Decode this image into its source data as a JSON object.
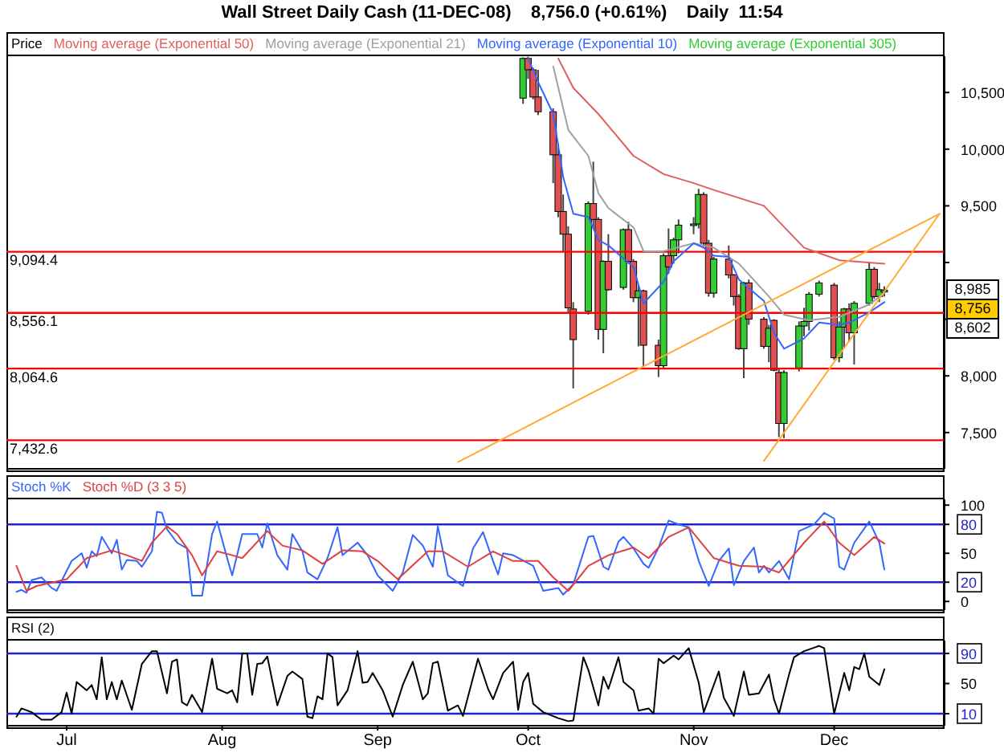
{
  "chart_data": [
    {
      "type": "candlestick",
      "title": "Wall Street Daily Cash (11-DEC-08)    8,756.0 (+0.61%)    Daily  11:54",
      "legend_title": "Price",
      "legend": "top left",
      "tick_labels": "y",
      "marker": "none",
      "line_style": "solid",
      "x": [
        "--09-30",
        "--10-01",
        "--10-02",
        "--10-03",
        "--10-06",
        "--10-07",
        "--10-08",
        "--10-09",
        "--10-10",
        "--10-13",
        "--10-14",
        "--10-15",
        "--10-16",
        "--10-17",
        "--10-20",
        "--10-21",
        "--10-22",
        "--10-23",
        "--10-24",
        "--10-27",
        "--10-28",
        "--10-29",
        "--10-30",
        "--10-31",
        "--11-03",
        "--11-04",
        "--11-05",
        "--11-06",
        "--11-07",
        "--11-10",
        "--11-11",
        "--11-12",
        "--11-13",
        "--11-14",
        "--11-17",
        "--11-18",
        "--11-19",
        "--11-20",
        "--11-21",
        "--11-24",
        "--11-25",
        "--11-26",
        "--11-28",
        "--12-01",
        "--12-02",
        "--12-03",
        "--12-04",
        "--12-05",
        "--12-08",
        "--12-09",
        "--12-10",
        "--12-11"
      ],
      "ohlc": [
        [
          10450,
          10810,
          10400,
          10800
        ],
        [
          10800,
          10815,
          10620,
          10700
        ],
        [
          10700,
          10720,
          10440,
          10460
        ],
        [
          10460,
          10700,
          10300,
          10330
        ],
        [
          10330,
          10360,
          9700,
          9950
        ],
        [
          9950,
          10050,
          9400,
          9450
        ],
        [
          9450,
          9600,
          9100,
          9250
        ],
        [
          9250,
          9320,
          8560,
          8600
        ],
        [
          8590,
          8650,
          7890,
          8320
        ],
        [
          8570,
          9540,
          8540,
          9520
        ],
        [
          9520,
          9890,
          9300,
          9380
        ],
        [
          9380,
          9400,
          8320,
          8410
        ],
        [
          8410,
          9020,
          8200,
          9010
        ],
        [
          9010,
          9250,
          8750,
          8760
        ],
        [
          8780,
          9300,
          8760,
          9290
        ],
        [
          9290,
          9360,
          8990,
          9010
        ],
        [
          9010,
          9030,
          8650,
          8690
        ],
        [
          8690,
          8800,
          8260,
          8750
        ],
        [
          8750,
          8760,
          8080,
          8270
        ],
        [
          8270,
          8320,
          7990,
          8090
        ],
        [
          8090,
          9080,
          8060,
          9060
        ],
        [
          9060,
          9300,
          8900,
          8960
        ],
        [
          9060,
          9220,
          8990,
          9200
        ],
        [
          9200,
          9380,
          9080,
          9330
        ],
        [
          9330,
          9400,
          9250,
          9340
        ],
        [
          9340,
          9650,
          9300,
          9600
        ],
        [
          9600,
          9620,
          9140,
          9170
        ],
        [
          9170,
          9200,
          8700,
          8730
        ],
        [
          8730,
          9050,
          8690,
          9030
        ],
        [
          9030,
          9150,
          8860,
          8890
        ],
        [
          8890,
          8900,
          8620,
          8700
        ],
        [
          8700,
          8720,
          8230,
          8240
        ],
        [
          8240,
          8830,
          7980,
          8820
        ],
        [
          8820,
          8850,
          8450,
          8500
        ],
        [
          8500,
          8520,
          8240,
          8260
        ],
        [
          8260,
          8450,
          8120,
          8420
        ],
        [
          8490,
          8500,
          8040,
          8050
        ],
        [
          8030,
          8060,
          7460,
          7580
        ],
        [
          7580,
          8050,
          7450,
          8030
        ],
        [
          8070,
          8480,
          8040,
          8440
        ],
        [
          8440,
          8600,
          8350,
          8480
        ],
        [
          8480,
          8740,
          8400,
          8720
        ],
        [
          8720,
          8840,
          8700,
          8820
        ],
        [
          8800,
          8820,
          8140,
          8160
        ],
        [
          8160,
          8480,
          8120,
          8430
        ],
        [
          8430,
          8600,
          8250,
          8590
        ],
        [
          8590,
          8640,
          8300,
          8380
        ],
        [
          8380,
          8660,
          8100,
          8640
        ],
        [
          8640,
          9000,
          8620,
          8940
        ],
        [
          8940,
          8960,
          8680,
          8700
        ],
        [
          8700,
          8820,
          8650,
          8760
        ],
        [
          8740,
          8790,
          8700,
          8756
        ]
      ],
      "series": [
        {
          "type": "line",
          "name": "Moving average (Exponential 50)",
          "color": "#e06060",
          "x": [
            "--10-07",
            "--10-10",
            "--10-15",
            "--10-22",
            "--10-28",
            "--11-03",
            "--11-07",
            "--11-17",
            "--11-20",
            "--11-25",
            "--12-02",
            "--12-11"
          ],
          "values": [
            10800,
            10540,
            10310,
            9940,
            9780,
            9700,
            9640,
            9500,
            9360,
            9130,
            9020,
            8990
          ]
        },
        {
          "type": "line",
          "name": "Moving average (Exponential 21)",
          "color": "#a0a0a0",
          "x": [
            "--10-06",
            "--10-09",
            "--10-13",
            "--10-15",
            "--10-17",
            "--10-22",
            "--10-24",
            "--10-28",
            "--11-03",
            "--11-07",
            "--11-12",
            "--11-18",
            "--11-21",
            "--11-26",
            "--12-02",
            "--12-08",
            "--12-11"
          ],
          "values": [
            10730,
            10170,
            9940,
            9610,
            9480,
            9310,
            9100,
            9100,
            9170,
            9130,
            8990,
            8700,
            8540,
            8490,
            8520,
            8630,
            8730
          ]
        },
        {
          "type": "line",
          "name": "Moving average (Exponential 10)",
          "color": "#3366ff",
          "x": [
            "--10-01",
            "--10-03",
            "--10-06",
            "--10-08",
            "--10-10",
            "--10-13",
            "--10-15",
            "--10-17",
            "--10-22",
            "--10-24",
            "--10-28",
            "--10-30",
            "--11-03",
            "--11-05",
            "--11-07",
            "--11-10",
            "--11-12",
            "--11-17",
            "--11-19",
            "--11-21",
            "--11-25",
            "--11-28",
            "--12-02",
            "--12-04",
            "--12-08",
            "--12-11"
          ],
          "values": [
            10800,
            10590,
            10310,
            9750,
            9430,
            9400,
            9200,
            9150,
            8960,
            8640,
            8830,
            9010,
            9170,
            9130,
            9060,
            9050,
            8850,
            8660,
            8380,
            8240,
            8330,
            8470,
            8450,
            8470,
            8560,
            8650
          ]
        },
        {
          "type": "line",
          "name": "Moving average (Exponential 305)",
          "color": "#33cc33",
          "values": [
            null,
            null,
            null,
            null,
            null,
            null,
            null,
            null,
            null,
            null,
            null,
            null,
            null,
            null,
            null,
            null,
            null,
            null,
            null,
            null,
            null,
            null,
            null,
            null,
            null,
            null,
            null,
            null,
            null,
            null,
            null,
            null,
            null,
            null,
            null,
            null,
            null,
            null,
            null,
            null,
            null,
            null,
            null,
            null,
            null,
            null,
            null,
            null,
            null,
            null,
            null,
            null
          ]
        },
        {
          "type": "line",
          "color": "#ffaa33",
          "x": [
            "--09-17",
            "--12-22"
          ],
          "values": [
            7240,
            9430
          ]
        },
        {
          "type": "line",
          "color": "#ffaa33",
          "x": [
            "--11-17",
            "--12-22"
          ],
          "values": [
            7250,
            9430
          ]
        }
      ],
      "xlim": [
        "--06-19",
        "--12-23"
      ],
      "xticks": [
        {
          "value": "--07-01",
          "label": null
        },
        {
          "value": "--08-01",
          "label": null
        },
        {
          "value": "--09-01",
          "label": null
        },
        {
          "value": "--10-01",
          "label": null
        },
        {
          "value": "--11-03",
          "label": null
        },
        {
          "value": "--12-01",
          "label": null
        }
      ],
      "ylim": [
        7180,
        10820
      ],
      "yticks": [
        {
          "value": 7500,
          "label": "7,500"
        },
        {
          "value": 8000,
          "label": "8,000"
        },
        {
          "value": 8500,
          "label": null
        },
        {
          "value": 9000,
          "label": null
        },
        {
          "value": 9500,
          "label": "9,500"
        },
        {
          "value": 10000,
          "label": "10,000"
        },
        {
          "value": 10500,
          "label": "10,500"
        }
      ],
      "ref_lines": [
        {
          "axis": "y",
          "value": 9094.4,
          "label": "9,094.4",
          "color": "#ff0000"
        },
        {
          "axis": "y",
          "value": 8556.1,
          "label": "8,556.1",
          "color": "#ff0000"
        },
        {
          "axis": "y",
          "value": 8064.6,
          "label": "8,064.6",
          "color": "#ff0000"
        },
        {
          "axis": "y",
          "value": 7432.6,
          "label": "7,432.6",
          "color": "#ff0000"
        }
      ],
      "annotations": [
        "8,985",
        "8,756",
        "8,602"
      ]
    },
    {
      "type": "line",
      "tick_labels": "y",
      "marker": "none",
      "line_style": "solid",
      "series": [
        {
          "name": "Stoch %K",
          "color": "#3366ff",
          "x": [
            "--06-21",
            "--06-22",
            "--06-23",
            "--06-24",
            "--06-26",
            "--06-28",
            "--06-29",
            "--07-02",
            "--07-04",
            "--07-05",
            "--07-06",
            "--07-07",
            "--07-08",
            "--07-10",
            "--07-11",
            "--07-12",
            "--07-13",
            "--07-15",
            "--07-16",
            "--07-18",
            "--07-19",
            "--07-20",
            "--07-21",
            "--07-23",
            "--07-25",
            "--07-26",
            "--07-28",
            "--07-30",
            "--07-31",
            "--08-02",
            "--08-03",
            "--08-05",
            "--08-08",
            "--08-09",
            "--08-10",
            "--08-12",
            "--08-14",
            "--08-15",
            "--08-17",
            "--08-18",
            "--08-20",
            "--08-22",
            "--08-24",
            "--08-25",
            "--08-28",
            "--08-30",
            "--09-01",
            "--09-04",
            "--09-06",
            "--09-08",
            "--09-10",
            "--09-12",
            "--09-13",
            "--09-15",
            "--09-18",
            "--09-20",
            "--09-22",
            "--09-24",
            "--09-25",
            "--09-26",
            "--09-28",
            "--10-02",
            "--10-04",
            "--10-07",
            "--10-08",
            "--10-10",
            "--10-13",
            "--10-14",
            "--10-16",
            "--10-17",
            "--10-19",
            "--10-20",
            "--10-22",
            "--10-24",
            "--10-25",
            "--10-27",
            "--10-29",
            "--10-31",
            "--11-02",
            "--11-04",
            "--11-06",
            "--11-08",
            "--11-10",
            "--11-11",
            "--11-13",
            "--11-15",
            "--11-16",
            "--11-17",
            "--11-18",
            "--11-20",
            "--11-22",
            "--11-24",
            "--11-27",
            "--11-29",
            "--12-01",
            "--12-02",
            "--12-03",
            "--12-05",
            "--12-08",
            "--12-10",
            "--12-11"
          ],
          "values": [
            10,
            12,
            9,
            22,
            25,
            14,
            11,
            42,
            50,
            35,
            52,
            47,
            67,
            50,
            64,
            33,
            43,
            42,
            36,
            52,
            93,
            92,
            75,
            61,
            55,
            6,
            6,
            70,
            83,
            45,
            27,
            70,
            70,
            56,
            81,
            48,
            33,
            70,
            52,
            30,
            23,
            45,
            77,
            48,
            61,
            48,
            27,
            11,
            30,
            69,
            58,
            36,
            78,
            27,
            16,
            55,
            72,
            42,
            28,
            50,
            48,
            37,
            11,
            14,
            7,
            18,
            67,
            68,
            36,
            33,
            62,
            67,
            55,
            39,
            35,
            56,
            84,
            80,
            77,
            42,
            16,
            42,
            55,
            17,
            42,
            56,
            30,
            37,
            30,
            42,
            23,
            73,
            80,
            92,
            86,
            36,
            33,
            61,
            83,
            61,
            33
          ]
        },
        {
          "name": "Stoch %D (3 3 5)",
          "color": "#e04040",
          "x": [
            "--06-21",
            "--06-23",
            "--06-25",
            "--07-01",
            "--07-05",
            "--07-10",
            "--07-13",
            "--07-16",
            "--07-18",
            "--07-21",
            "--07-23",
            "--07-26",
            "--07-28",
            "--07-31",
            "--08-03",
            "--08-05",
            "--08-10",
            "--08-13",
            "--08-17",
            "--08-21",
            "--08-25",
            "--08-29",
            "--09-01",
            "--09-05",
            "--09-11",
            "--09-14",
            "--09-19",
            "--09-24",
            "--09-28",
            "--10-03",
            "--10-06",
            "--10-09",
            "--10-13",
            "--10-17",
            "--10-22",
            "--10-25",
            "--10-29",
            "--11-02",
            "--11-07",
            "--11-12",
            "--11-17",
            "--11-20",
            "--11-25",
            "--11-29",
            "--12-02",
            "--12-05",
            "--12-09",
            "--12-11"
          ],
          "values": [
            37,
            11,
            16,
            23,
            45,
            53,
            48,
            42,
            61,
            78,
            70,
            48,
            27,
            52,
            48,
            45,
            73,
            58,
            53,
            39,
            53,
            52,
            42,
            23,
            52,
            52,
            36,
            52,
            42,
            42,
            25,
            11,
            37,
            48,
            56,
            45,
            67,
            77,
            45,
            37,
            36,
            30,
            61,
            83,
            61,
            48,
            67,
            60
          ]
        }
      ],
      "xlim": [
        "--06-19",
        "--12-23"
      ],
      "xticks": [
        {
          "value": "--07-01",
          "label": null
        },
        {
          "value": "--08-01",
          "label": null
        },
        {
          "value": "--09-01",
          "label": null
        },
        {
          "value": "--10-01",
          "label": null
        },
        {
          "value": "--11-03",
          "label": null
        },
        {
          "value": "--12-01",
          "label": null
        }
      ],
      "ylim": [
        -9,
        106
      ],
      "yticks": [
        0,
        20,
        50,
        80,
        100
      ],
      "ref_lines": [
        {
          "axis": "y",
          "value": 80,
          "color": "#2222cc"
        },
        {
          "axis": "y",
          "value": 20,
          "color": "#2222cc"
        }
      ]
    },
    {
      "type": "line",
      "legend_title": "RSI (2)",
      "marker": "none",
      "line_style": "solid",
      "series": [
        {
          "color": "#000000",
          "x": [
            "--06-21",
            "--06-22",
            "--06-24",
            "--06-26",
            "--06-28",
            "--06-30",
            "--07-01",
            "--07-02",
            "--07-03",
            "--07-05",
            "--07-06",
            "--07-07",
            "--07-08",
            "--07-09",
            "--07-10",
            "--07-11",
            "--07-12",
            "--07-14",
            "--07-16",
            "--07-18",
            "--07-19",
            "--07-21",
            "--07-22",
            "--07-23",
            "--07-24",
            "--07-25",
            "--07-26",
            "--07-28",
            "--07-30",
            "--07-31",
            "--08-02",
            "--08-03",
            "--08-04",
            "--08-05",
            "--08-06",
            "--08-07",
            "--08-08",
            "--08-09",
            "--08-10",
            "--08-12",
            "--08-14",
            "--08-15",
            "--08-17",
            "--08-18",
            "--08-19",
            "--08-20",
            "--08-21",
            "--08-22",
            "--08-23",
            "--08-24",
            "--08-26",
            "--08-28",
            "--08-29",
            "--08-30",
            "--08-31",
            "--09-02",
            "--09-04",
            "--09-06",
            "--09-08",
            "--09-10",
            "--09-11",
            "--09-12",
            "--09-13",
            "--09-15",
            "--09-17",
            "--09-18",
            "--09-21",
            "--09-23",
            "--09-24",
            "--09-26",
            "--09-28",
            "--09-29",
            "--09-30",
            "--10-01",
            "--10-02",
            "--10-04",
            "--10-07",
            "--10-09",
            "--10-10",
            "--10-12",
            "--10-13",
            "--10-15",
            "--10-16",
            "--10-17",
            "--10-19",
            "--10-20",
            "--10-22",
            "--10-23",
            "--10-25",
            "--10-26",
            "--10-27",
            "--10-28",
            "--10-30",
            "--10-31",
            "--11-02",
            "--11-04",
            "--11-05",
            "--11-08",
            "--11-09",
            "--11-11",
            "--11-13",
            "--11-14",
            "--11-16",
            "--11-18",
            "--11-19",
            "--11-20",
            "--11-22",
            "--11-23",
            "--11-25",
            "--11-28",
            "--11-29",
            "--12-01",
            "--12-03",
            "--12-04",
            "--12-05",
            "--12-06",
            "--12-07",
            "--12-08",
            "--12-10",
            "--12-11"
          ],
          "values": [
            6,
            17,
            12,
            2,
            2,
            12,
            38,
            10,
            52,
            41,
            48,
            29,
            85,
            29,
            52,
            29,
            54,
            15,
            76,
            93,
            93,
            37,
            79,
            82,
            25,
            21,
            35,
            12,
            83,
            43,
            37,
            41,
            25,
            90,
            90,
            35,
            76,
            77,
            86,
            21,
            60,
            66,
            56,
            6,
            4,
            33,
            29,
            90,
            85,
            21,
            41,
            93,
            51,
            52,
            64,
            41,
            6,
            48,
            79,
            29,
            37,
            77,
            79,
            14,
            21,
            7,
            83,
            43,
            29,
            64,
            79,
            15,
            52,
            64,
            23,
            12,
            4,
            0,
            1,
            85,
            68,
            21,
            59,
            43,
            85,
            52,
            41,
            14,
            17,
            10,
            83,
            77,
            87,
            82,
            97,
            51,
            12,
            66,
            31,
            7,
            66,
            35,
            37,
            62,
            29,
            10,
            62,
            85,
            93,
            100,
            97,
            10,
            64,
            41,
            72,
            69,
            90,
            59,
            48,
            69
          ]
        }
      ],
      "xlim": [
        "--06-19",
        "--12-23"
      ],
      "xticks": [
        {
          "value": "--07-01",
          "label": "Jul"
        },
        {
          "value": "--08-01",
          "label": "Aug"
        },
        {
          "value": "--09-01",
          "label": "Sep"
        },
        {
          "value": "--10-01",
          "label": "Oct"
        },
        {
          "value": "--11-03",
          "label": "Nov"
        },
        {
          "value": "--12-01",
          "label": "Dec"
        }
      ],
      "ylim": [
        -6,
        107
      ],
      "yticks": [
        10,
        50,
        90
      ],
      "ref_lines": [
        {
          "axis": "y",
          "value": 90,
          "color": "#2222cc"
        },
        {
          "axis": "y",
          "value": 10,
          "color": "#2222cc"
        }
      ]
    }
  ]
}
